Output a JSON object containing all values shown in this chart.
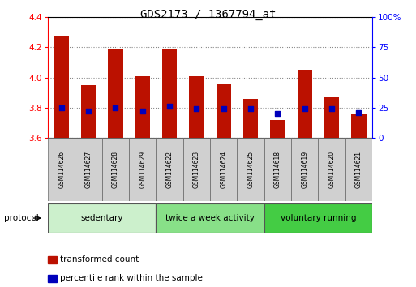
{
  "title": "GDS2173 / 1367794_at",
  "samples": [
    "GSM114626",
    "GSM114627",
    "GSM114628",
    "GSM114629",
    "GSM114622",
    "GSM114623",
    "GSM114624",
    "GSM114625",
    "GSM114618",
    "GSM114619",
    "GSM114620",
    "GSM114621"
  ],
  "transformed_count": [
    4.27,
    3.95,
    4.19,
    4.01,
    4.19,
    4.01,
    3.96,
    3.86,
    3.72,
    4.05,
    3.87,
    3.76
  ],
  "percentile_rank_pct": [
    25,
    22,
    25,
    22,
    26,
    24,
    24,
    24,
    20,
    24,
    24,
    21
  ],
  "y_min": 3.6,
  "y_max": 4.4,
  "y_ticks": [
    3.6,
    3.8,
    4.0,
    4.2,
    4.4
  ],
  "y2_ticks": [
    0,
    25,
    50,
    75,
    100
  ],
  "protocol_groups": [
    {
      "label": "sedentary",
      "start": 0,
      "end": 4,
      "color": "#ccf0cc"
    },
    {
      "label": "twice a week activity",
      "start": 4,
      "end": 8,
      "color": "#88e088"
    },
    {
      "label": "voluntary running",
      "start": 8,
      "end": 12,
      "color": "#44cc44"
    }
  ],
  "bar_color": "#bb1100",
  "dot_color": "#0000bb",
  "bar_width": 0.55,
  "grid_color": "#888888",
  "background_color": "#ffffff",
  "sample_box_color": "#d0d0d0",
  "protocol_text": "protocol",
  "legend_items": [
    {
      "label": "transformed count",
      "color": "#bb1100"
    },
    {
      "label": "percentile rank within the sample",
      "color": "#0000bb"
    }
  ]
}
